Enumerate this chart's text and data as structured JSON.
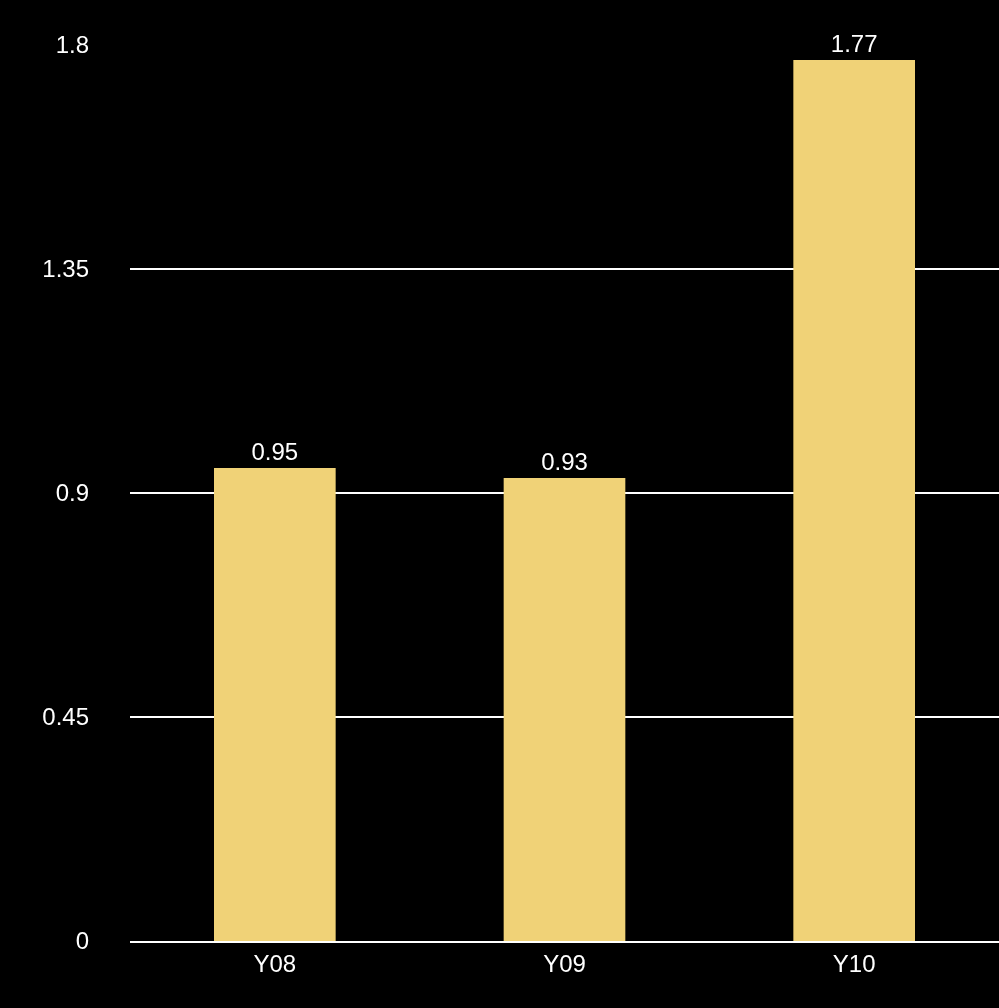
{
  "chart_data": {
    "type": "bar",
    "categories": [
      "Y08",
      "Y09",
      "Y10"
    ],
    "values": [
      0.95,
      0.93,
      1.77
    ],
    "color": "#f0d277",
    "ylim": [
      0,
      1.8
    ],
    "yticks": [
      0,
      0.45,
      0.9,
      1.35,
      1.8
    ],
    "grid": "y",
    "data_labels": true,
    "legend": false
  }
}
